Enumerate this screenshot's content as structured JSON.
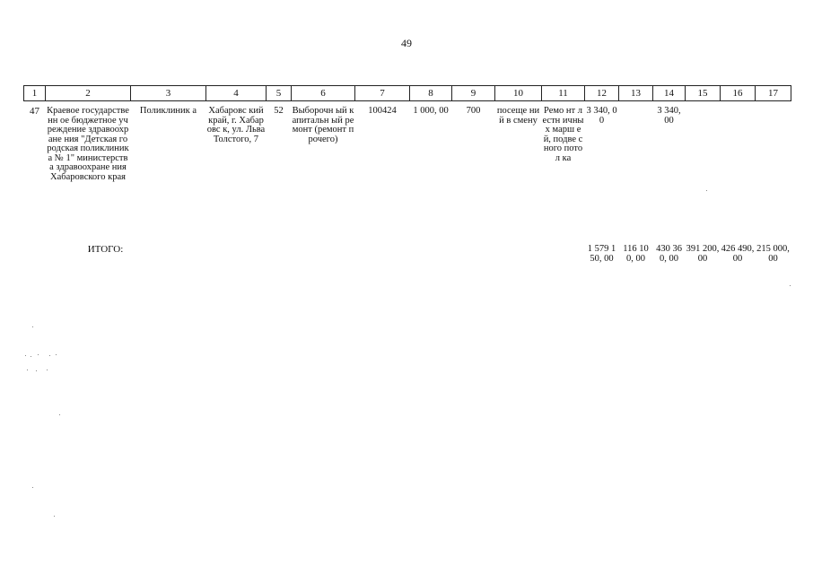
{
  "page_number": "49",
  "columns": [
    "1",
    "2",
    "3",
    "4",
    "5",
    "6",
    "7",
    "8",
    "9",
    "10",
    "11",
    "12",
    "13",
    "14",
    "15",
    "16",
    "17"
  ],
  "row": {
    "c1": "47",
    "c2": "Краевое государственн ое бюджетное учреждение здравоохране ния \"Детская городская поликлиника № 1\" министерства здравоохране ния Хабаровского края",
    "c3": "Поликлиник а",
    "c4": "Хабаровс кий край, г. Хабаровс к, ул. Льва Толстого, 7",
    "c5": "52",
    "c6": "Выборочн ый капитальн ый ремонт (ремонт прочего)",
    "c7": "100424",
    "c8": "1 000, 00",
    "c9": "700",
    "c10": "посеще ний в смену",
    "c11": "Ремо нт лестн ичны х марш ей, подве сного потол ка",
    "c12": "3 340, 00",
    "c13": "",
    "c14": "3 340, 00",
    "c15": "",
    "c16": "",
    "c17": ""
  },
  "total": {
    "label": "ИТОГО:",
    "c12": "1 579 150, 00",
    "c13": "116 100, 00",
    "c14": "430 360, 00",
    "c15": "391 200, 00",
    "c16": "426 490, 00",
    "c17": "215 000, 00"
  }
}
